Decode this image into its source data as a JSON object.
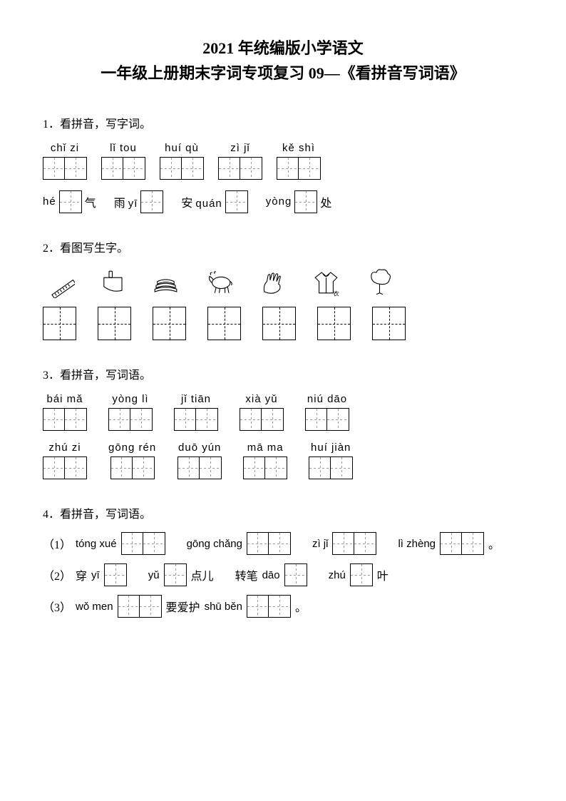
{
  "colors": {
    "text": "#000000",
    "bg": "#ffffff",
    "dash": "#999999"
  },
  "fonts": {
    "body_size": 16,
    "title_size": 22,
    "pinyin_size": 15
  },
  "title": {
    "line1": "2021 年统编版小学语文",
    "line2": "一年级上册期末字词专项复习 09—《看拼音写词语》"
  },
  "q1": {
    "label": "1．看拼音，写字词。",
    "row1": [
      {
        "pinyin": "chǐ zi",
        "cells": 2
      },
      {
        "pinyin": "lǐ tou",
        "cells": 2
      },
      {
        "pinyin": "huí qù",
        "cells": 2
      },
      {
        "pinyin": "zì jǐ",
        "cells": 2
      },
      {
        "pinyin": "kě shì",
        "cells": 2
      }
    ],
    "row2": [
      {
        "pre": "hé",
        "cells": 1,
        "post": "气"
      },
      {
        "pre": "雨 yī",
        "cells": 1,
        "post": ""
      },
      {
        "pre": "安 quán",
        "cells": 1,
        "post": ""
      },
      {
        "pre": "yòng",
        "cells": 1,
        "post": "处"
      }
    ]
  },
  "q2": {
    "label": "2．看图写生字。",
    "icons": [
      "ruler",
      "cleaver",
      "books",
      "ox",
      "hand",
      "clothes",
      "tree"
    ]
  },
  "q3": {
    "label": "3．看拼音，写词语。",
    "row1": [
      {
        "pinyin": "bái mǎ",
        "cells": 2
      },
      {
        "pinyin": "yòng lì",
        "cells": 2
      },
      {
        "pinyin": "jǐ tiān",
        "cells": 2
      },
      {
        "pinyin": "xià yǔ",
        "cells": 2
      },
      {
        "pinyin": "niú dāo",
        "cells": 2
      }
    ],
    "row2": [
      {
        "pinyin": "zhú zi",
        "cells": 2
      },
      {
        "pinyin": "gōng rén",
        "cells": 2
      },
      {
        "pinyin": "duō yún",
        "cells": 2
      },
      {
        "pinyin": "mā ma",
        "cells": 2
      },
      {
        "pinyin": "huí jiàn",
        "cells": 2
      }
    ]
  },
  "q4": {
    "label": "4．看拼音，写词语。",
    "lines": [
      {
        "num": "（1）",
        "parts": [
          {
            "type": "pinyin",
            "text": "tóng xué"
          },
          {
            "type": "box",
            "cells": 2
          },
          {
            "type": "gap"
          },
          {
            "type": "pinyin",
            "text": "gōng chǎng"
          },
          {
            "type": "box",
            "cells": 2
          },
          {
            "type": "gap"
          },
          {
            "type": "pinyin",
            "text": "zì jǐ"
          },
          {
            "type": "box",
            "cells": 2
          },
          {
            "type": "gap"
          },
          {
            "type": "pinyin",
            "text": "lì zhèng"
          },
          {
            "type": "box",
            "cells": 2
          },
          {
            "type": "cn",
            "text": "。"
          }
        ]
      },
      {
        "num": "（2）",
        "parts": [
          {
            "type": "cn",
            "text": "穿"
          },
          {
            "type": "pinyin",
            "text": " yī"
          },
          {
            "type": "box",
            "cells": 1
          },
          {
            "type": "gap"
          },
          {
            "type": "pinyin",
            "text": "yǔ"
          },
          {
            "type": "box",
            "cells": 1
          },
          {
            "type": "cn",
            "text": "点儿"
          },
          {
            "type": "gap"
          },
          {
            "type": "cn",
            "text": "转笔 "
          },
          {
            "type": "pinyin",
            "text": "dāo"
          },
          {
            "type": "box",
            "cells": 1
          },
          {
            "type": "gap"
          },
          {
            "type": "pinyin",
            "text": "zhú"
          },
          {
            "type": "box",
            "cells": 1
          },
          {
            "type": "cn",
            "text": "叶"
          }
        ]
      },
      {
        "num": "（3）",
        "parts": [
          {
            "type": "pinyin",
            "text": "wǒ men"
          },
          {
            "type": "box",
            "cells": 2
          },
          {
            "type": "cn",
            "text": "要爱护 "
          },
          {
            "type": "pinyin",
            "text": "shū běn"
          },
          {
            "type": "box",
            "cells": 2
          },
          {
            "type": "cn",
            "text": "。"
          }
        ]
      }
    ]
  }
}
